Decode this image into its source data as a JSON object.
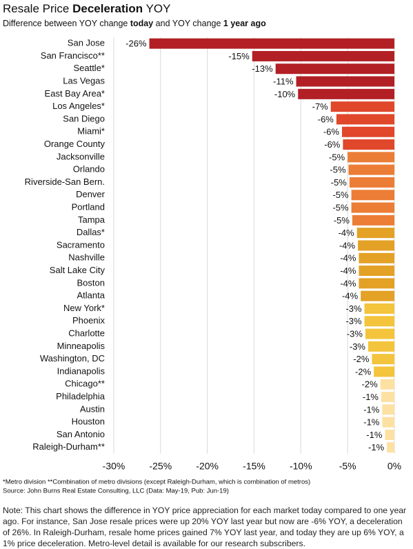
{
  "chart_data": {
    "type": "bar",
    "title_parts": [
      "Resale Price ",
      "Deceleration",
      " YOY"
    ],
    "subtitle_parts": [
      "Difference between YOY change ",
      "today",
      " and YOY change ",
      "1 year ago"
    ],
    "categories": [
      "San Jose",
      "San Francisco**",
      "Seattle*",
      "Las Vegas",
      "East Bay Area*",
      "Los Angeles*",
      "San Diego",
      "Miami*",
      "Orange County",
      "Jacksonville",
      "Orlando",
      "Riverside-San Bern.",
      "Denver",
      "Portland",
      "Tampa",
      "Dallas*",
      "Sacramento",
      "Nashville",
      "Salt Lake City",
      "Boston",
      "Atlanta",
      "New York*",
      "Phoenix",
      "Charlotte",
      "Minneapolis",
      "Washington, DC",
      "Indianapolis",
      "Chicago**",
      "Philadelphia",
      "Austin",
      "Houston",
      "San Antonio",
      "Raleigh-Durham**"
    ],
    "values": [
      -26.2,
      -15.2,
      -12.7,
      -10.5,
      -10.3,
      -6.8,
      -6.2,
      -5.6,
      -5.5,
      -5.0,
      -4.9,
      -4.8,
      -4.6,
      -4.6,
      -4.5,
      -4.0,
      -3.9,
      -3.8,
      -3.8,
      -3.8,
      -3.6,
      -3.2,
      -3.2,
      -3.1,
      -2.8,
      -2.4,
      -2.2,
      -1.5,
      -1.4,
      -1.3,
      -1.3,
      -1.0,
      -0.8
    ],
    "value_labels": [
      "-26%",
      "-15%",
      "-13%",
      "-11%",
      "-10%",
      "-7%",
      "-6%",
      "-6%",
      "-6%",
      "-5%",
      "-5%",
      "-5%",
      "-5%",
      "-5%",
      "-5%",
      "-4%",
      "-4%",
      "-4%",
      "-4%",
      "-4%",
      "-4%",
      "-3%",
      "-3%",
      "-3%",
      "-3%",
      "-2%",
      "-2%",
      "-2%",
      "-1%",
      "-1%",
      "-1%",
      "-1%",
      "-1%"
    ],
    "colors": [
      "#b22025",
      "#b22025",
      "#b22025",
      "#b22025",
      "#b22025",
      "#e0472b",
      "#e0472b",
      "#e0472b",
      "#e0472b",
      "#ec7d36",
      "#ec7d36",
      "#ec7d36",
      "#ec7d36",
      "#ec7d36",
      "#ec7d36",
      "#e3a126",
      "#e3a126",
      "#e3a126",
      "#e3a126",
      "#e3a126",
      "#e3a126",
      "#f3c43c",
      "#f3c43c",
      "#f3c43c",
      "#f3c43c",
      "#f3c43c",
      "#f3c43c",
      "#fde1a3",
      "#fde1a3",
      "#fde1a3",
      "#fde1a3",
      "#fde1a3",
      "#fde1a3"
    ],
    "xlim": [
      -30,
      0
    ],
    "xticks": [
      {
        "value": -30,
        "label": "-30%"
      },
      {
        "value": -25,
        "label": "-25%"
      },
      {
        "value": -20,
        "label": "-20%"
      },
      {
        "value": -15,
        "label": "-15%"
      },
      {
        "value": -10,
        "label": "-10%"
      },
      {
        "value": -5,
        "label": "-5%"
      },
      {
        "value": 0,
        "label": "0%"
      }
    ],
    "grid": true,
    "footnotes": [
      "*Metro division **Combination of metro divisions (except Raleigh-Durham, which is combination of metros)",
      "Source: John Burns Real Estate Consulting, LLC (Data: May-19, Pub: Jun-19)"
    ],
    "note": "Note: This chart shows the difference in YOY price appreciation for each market today compared to one year ago. For instance, San Jose resale prices were up 20% YOY last year but now are -6% YOY, a deceleration of 26%. In Raleigh-Durham, resale home prices gained 7% YOY last year, and today they are up 6% YOY, a 1% price deceleration. Metro-level detail is available for our research subscribers."
  }
}
